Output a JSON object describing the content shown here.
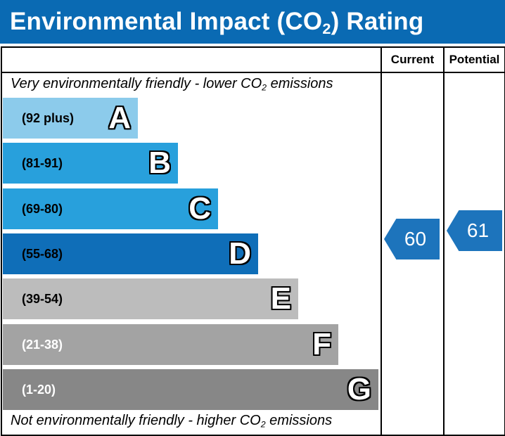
{
  "title": {
    "pre": "Environmental Impact (CO",
    "sub": "2",
    "post": ") Rating"
  },
  "columns": {
    "current": "Current",
    "potential": "Potential"
  },
  "top_note": {
    "pre": "Very environmentally friendly - lower CO",
    "sub": "2",
    "post": " emissions"
  },
  "bottom_note": {
    "pre": "Not environmentally friendly - higher CO",
    "sub": "2",
    "post": " emissions"
  },
  "chart_data": {
    "type": "bar",
    "categories": [
      "A",
      "B",
      "C",
      "D",
      "E",
      "F",
      "G"
    ],
    "ranges": [
      "(92 plus)",
      "(81-91)",
      "(69-80)",
      "(55-68)",
      "(39-54)",
      "(21-38)",
      "(1-20)"
    ],
    "colors": [
      "#8ccbeb",
      "#28a0dc",
      "#28a0dc",
      "#0f6eb8",
      "#bcbcbc",
      "#a3a3a3",
      "#878787"
    ],
    "range_text_colors": [
      "#000000",
      "#000000",
      "#000000",
      "#000000",
      "#000000",
      "#ffffff",
      "#ffffff"
    ],
    "current": {
      "value": 60,
      "band": "D",
      "color": "#1d74bc"
    },
    "potential": {
      "value": 61,
      "band": "D",
      "color": "#1d74bc"
    }
  }
}
